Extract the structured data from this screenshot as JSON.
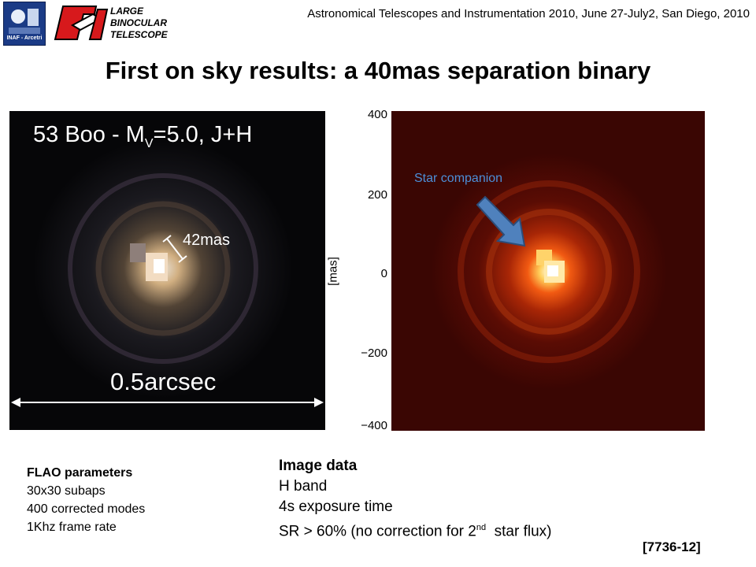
{
  "header": {
    "conference": "Astronomical Telescopes and Instrumentation 2010, June 27-July2, San Diego, 2010",
    "logo_inaf_text": "INAF - Arcetri",
    "logo_lbt_line1": "LARGE",
    "logo_lbt_line2": "BINOCULAR",
    "logo_lbt_line3": "TELESCOPE"
  },
  "slide": {
    "title": "First on sky results: a 40mas separation binary"
  },
  "left_image": {
    "caption_main": "53 Boo - M",
    "caption_sub": "V",
    "caption_rest": "=5.0, J+H",
    "separation_label": "42mas",
    "scale_label": "0.5arcsec"
  },
  "right_image": {
    "annotation": "Star companion",
    "axis_unit": "[mas]",
    "y_ticks": [
      "400",
      "200",
      "0",
      "−200",
      "−400"
    ]
  },
  "flao": {
    "heading": "FLAO parameters",
    "lines": [
      "30x30 subaps",
      "400 corrected modes",
      "1Khz frame rate"
    ]
  },
  "image_data": {
    "heading": "Image data",
    "line1": "H band",
    "line2": "4s exposure time",
    "line3_pre": "SR > 60% (no correction for 2",
    "line3_sup": "nd",
    "line3_post": "  star flux)"
  },
  "reference": "[7736-12]",
  "colors": {
    "annotation_blue": "#4d8fd8",
    "arrow_blue": "#4f81bd",
    "logo_red": "#d7191c",
    "inaf_blue": "#1b3b86"
  }
}
